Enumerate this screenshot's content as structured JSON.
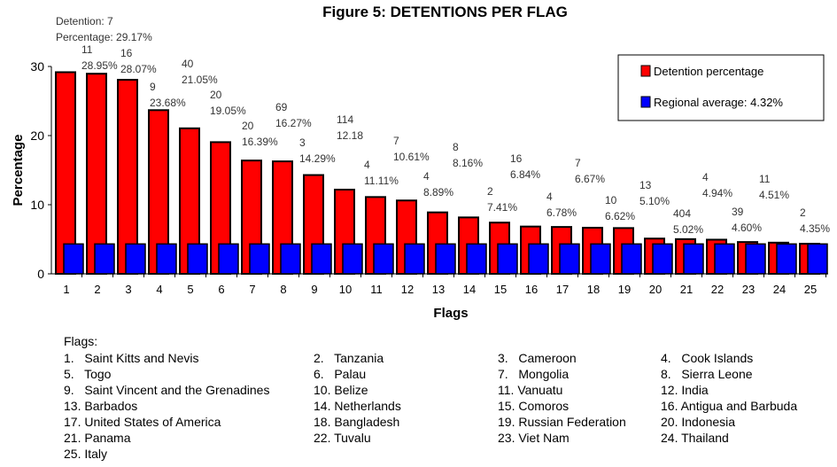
{
  "chart_data": {
    "type": "bar",
    "title": "Figure 5: DETENTIONS PER FLAG",
    "xlabel": "Flags",
    "ylabel": "Percentage",
    "ylim": [
      0,
      30
    ],
    "yticks": [
      0,
      10,
      20,
      30
    ],
    "categories": [
      "1",
      "2",
      "3",
      "4",
      "5",
      "6",
      "7",
      "8",
      "9",
      "10",
      "11",
      "12",
      "13",
      "14",
      "15",
      "16",
      "17",
      "18",
      "19",
      "20",
      "21",
      "22",
      "23",
      "24",
      "25"
    ],
    "series": [
      {
        "name": "Detention percentage",
        "color": "#ff0000",
        "values": [
          29.17,
          28.95,
          28.07,
          23.68,
          21.05,
          19.05,
          16.39,
          16.27,
          14.29,
          12.18,
          11.11,
          10.61,
          8.89,
          8.16,
          7.41,
          6.84,
          6.78,
          6.67,
          6.62,
          5.1,
          5.02,
          4.94,
          4.6,
          4.51,
          4.35
        ]
      },
      {
        "name": "Regional average: 4.32%",
        "color": "#0000ff",
        "values": [
          4.32,
          4.32,
          4.32,
          4.32,
          4.32,
          4.32,
          4.32,
          4.32,
          4.32,
          4.32,
          4.32,
          4.32,
          4.32,
          4.32,
          4.32,
          4.32,
          4.32,
          4.32,
          4.32,
          4.32,
          4.32,
          4.32,
          4.32,
          4.32,
          4.32
        ]
      }
    ],
    "data_labels": [
      [
        "Detention: 7",
        "Percentage: 29.17%"
      ],
      [
        "11",
        "28.95%"
      ],
      [
        "16",
        "28.07%"
      ],
      [
        "9",
        "23.68%"
      ],
      [
        "40",
        "21.05%"
      ],
      [
        "20",
        "19.05%"
      ],
      [
        "20",
        "16.39%"
      ],
      [
        "69",
        "16.27%"
      ],
      [
        "3",
        "14.29%"
      ],
      [
        "114",
        "12.18"
      ],
      [
        "4",
        "11.11%"
      ],
      [
        "7",
        "10.61%"
      ],
      [
        "4",
        "8.89%"
      ],
      [
        "8",
        "8.16%"
      ],
      [
        "2",
        "7.41%"
      ],
      [
        "16",
        "6.84%"
      ],
      [
        "4",
        "6.78%"
      ],
      [
        "7",
        "6.67%"
      ],
      [
        "10",
        "6.62%"
      ],
      [
        "13",
        "5.10%"
      ],
      [
        "404",
        "5.02%"
      ],
      [
        "4",
        "4.94%"
      ],
      [
        "39",
        "4.60%"
      ],
      [
        "11",
        "4.51%"
      ],
      [
        "2",
        "4.35%"
      ]
    ],
    "grid": false,
    "legend": "top-right"
  },
  "flags": {
    "heading": "Flags:",
    "items": [
      "1.   Saint Kitts and Nevis",
      "2.   Tanzania",
      "3.   Cameroon",
      "4.   Cook Islands",
      "5.   Togo",
      "6.   Palau",
      "7.   Mongolia",
      "8.   Sierra Leone",
      "9.   Saint Vincent and the Grenadines",
      "10. Belize",
      "11. Vanuatu",
      "12. India",
      "13. Barbados",
      "14. Netherlands",
      "15. Comoros",
      "16. Antigua and Barbuda",
      "17. United States of America",
      "18. Bangladesh",
      "19. Russian Federation",
      "20. Indonesia",
      "21. Panama",
      "22. Tuvalu",
      "23. Viet Nam",
      "24. Thailand",
      "25. Italy"
    ]
  }
}
